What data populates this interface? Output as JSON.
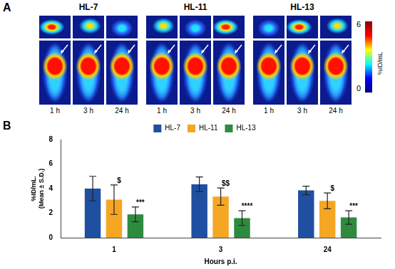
{
  "panel_a": {
    "label": "A",
    "groups": [
      "HL-7",
      "HL-11",
      "HL-13"
    ],
    "timepoints": [
      "1 h",
      "3 h",
      "24 h"
    ],
    "colorbar": {
      "range": [
        0,
        6
      ],
      "label": "%ID/mL"
    }
  },
  "chart_data": {
    "type": "bar",
    "panel_label": "B",
    "categories": [
      "1",
      "3",
      "24"
    ],
    "x_label": "Hours p.i.",
    "y_label": [
      "%ID/mL.",
      "(Mean ± S.D.)"
    ],
    "series": [
      {
        "name": "HL-7",
        "color": "#1f4fa0",
        "values": [
          4.0,
          4.35,
          3.85
        ],
        "errors": [
          1.0,
          0.6,
          0.35
        ],
        "annotations": [
          null,
          null,
          null
        ]
      },
      {
        "name": "HL-11",
        "color": "#f5a623",
        "values": [
          3.1,
          3.35,
          3.0
        ],
        "errors": [
          1.2,
          0.7,
          0.65
        ],
        "annotations": [
          "$",
          "$$",
          "$"
        ]
      },
      {
        "name": "HL-13",
        "color": "#2e8b3e",
        "values": [
          1.9,
          1.6,
          1.65
        ],
        "errors": [
          0.6,
          0.6,
          0.55
        ],
        "annotations": [
          "***",
          "****",
          "***"
        ]
      }
    ],
    "ylim": [
      0,
      8
    ],
    "yticks": [
      0,
      2,
      4,
      6,
      8
    ],
    "grid": false,
    "legend": "top"
  }
}
